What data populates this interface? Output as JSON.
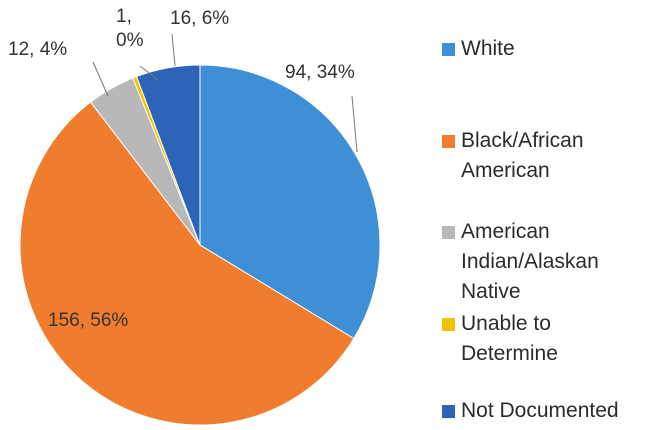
{
  "chart_data": {
    "type": "pie",
    "slices": [
      {
        "label": "White",
        "value": 94,
        "percent": "34%",
        "color": "#3f8fd6",
        "data_label": "94, 34%"
      },
      {
        "label": "Black/African American",
        "value": 156,
        "percent": "56%",
        "color": "#f07c2e",
        "data_label": "156, 56%"
      },
      {
        "label": "American Indian/Alaskan Native",
        "value": 12,
        "percent": "4%",
        "color": "#b8b8b8",
        "data_label": "12, 4%"
      },
      {
        "label": "Unable to Determine",
        "value": 1,
        "percent": "0%",
        "color": "#f2c200",
        "data_label": "1,\n0%"
      },
      {
        "label": "Not Documented",
        "value": 16,
        "percent": "6%",
        "color": "#2e64b8",
        "data_label": "16, 6%"
      }
    ],
    "legend_position": "right",
    "start_angle_deg": 0,
    "direction": "clockwise"
  },
  "legend": {
    "items": [
      {
        "text": "White"
      },
      {
        "text": "Black/African\nAmerican"
      },
      {
        "text": "American\nIndian/Alaskan\nNative"
      },
      {
        "text": "Unable to\nDetermine"
      },
      {
        "text": "Not Documented"
      }
    ]
  }
}
